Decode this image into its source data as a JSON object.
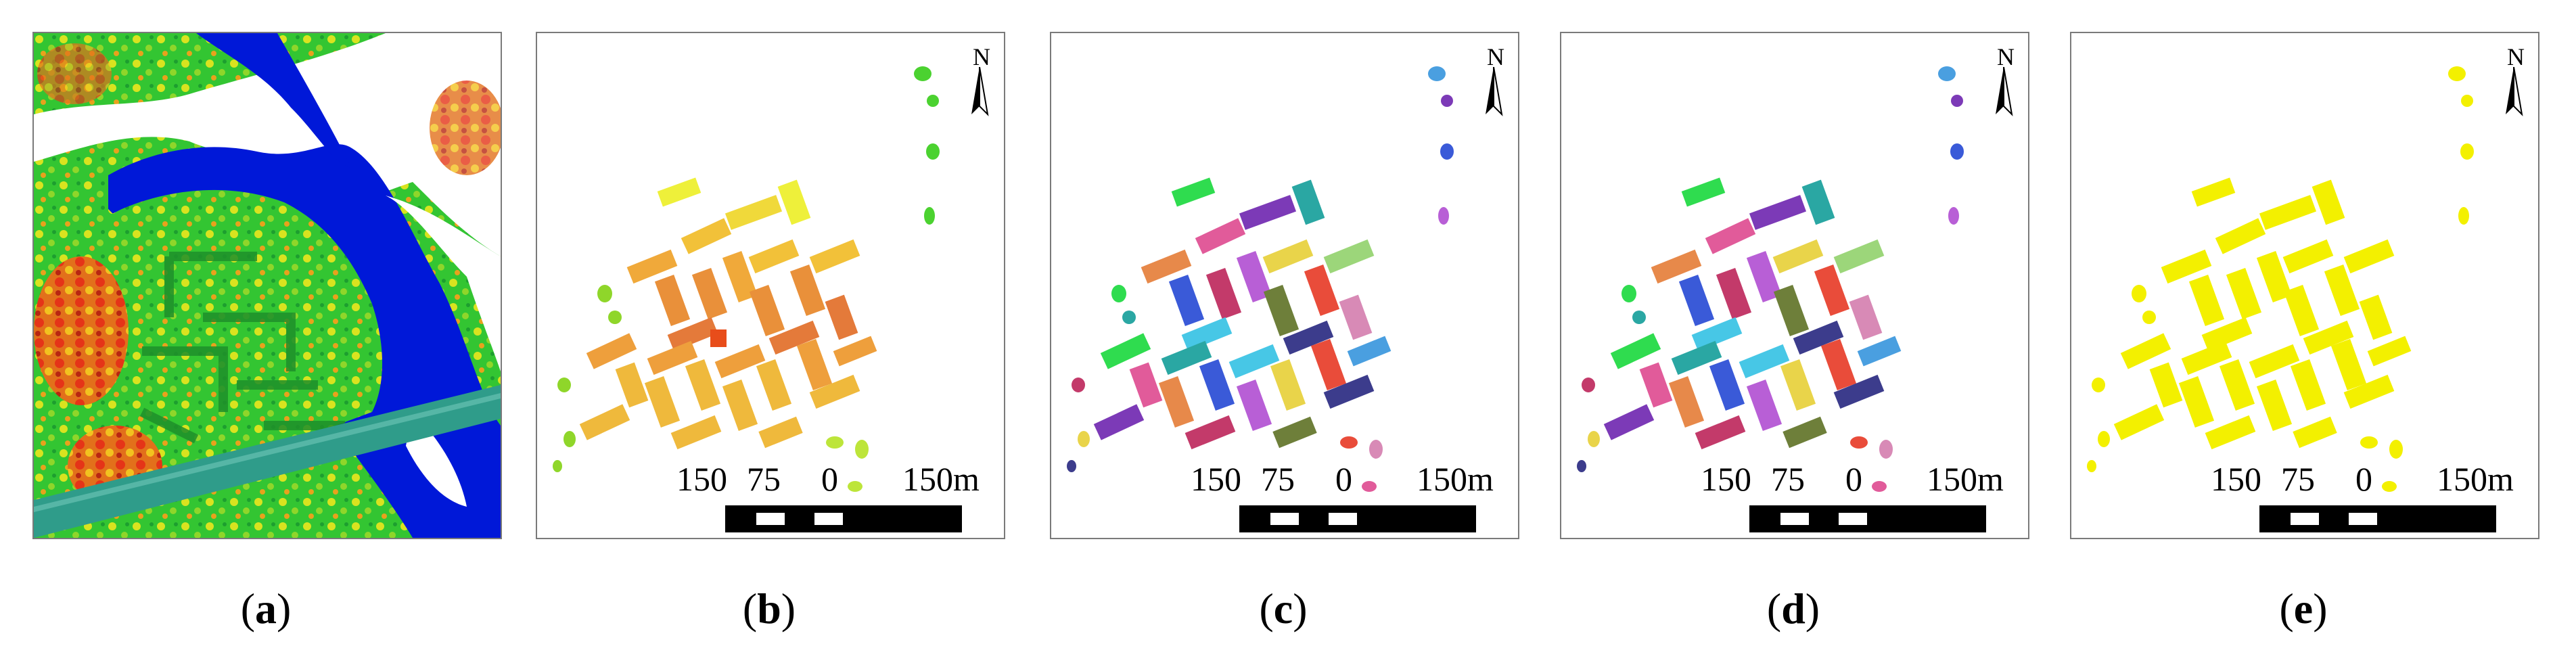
{
  "panels": [
    {
      "id": "a",
      "caption": "a",
      "type": "lidar"
    },
    {
      "id": "b",
      "caption": "b",
      "type": "gradient"
    },
    {
      "id": "c",
      "caption": "c",
      "type": "multicolor"
    },
    {
      "id": "d",
      "caption": "d",
      "type": "multicolor"
    },
    {
      "id": "e",
      "caption": "e",
      "type": "yellow"
    }
  ],
  "scale": {
    "labels": [
      "150",
      "75",
      "0",
      "150m"
    ]
  },
  "north_label": "N",
  "colors": {
    "water": "#0018d8",
    "vegetation": "#2bd22b",
    "canopy_high": "#e84d1a",
    "segment_yellow": "#f3f000"
  }
}
